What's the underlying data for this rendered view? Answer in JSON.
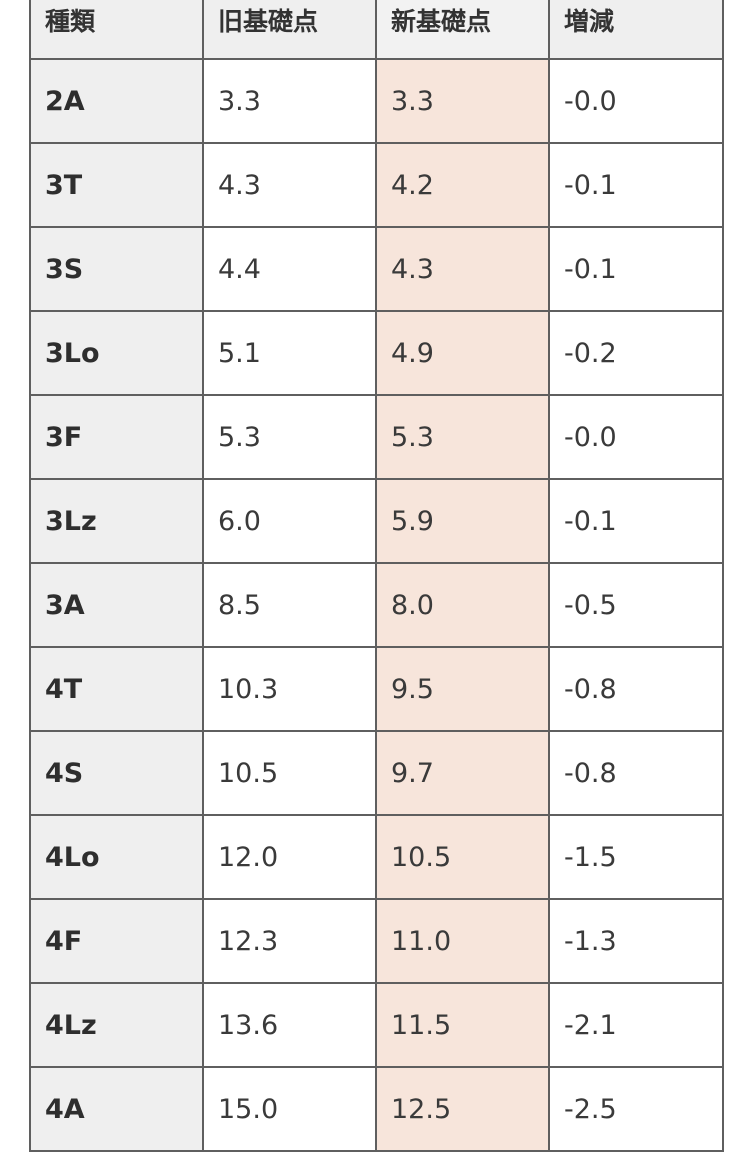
{
  "table": {
    "headers": [
      "種類",
      "旧基礎点",
      "新基礎点",
      "増減"
    ],
    "highlight_color": "#f7e5db",
    "rows": [
      {
        "type": "2A",
        "old": "3.3",
        "new": "3.3",
        "diff": "-0.0"
      },
      {
        "type": "3T",
        "old": "4.3",
        "new": "4.2",
        "diff": "-0.1"
      },
      {
        "type": "3S",
        "old": "4.4",
        "new": "4.3",
        "diff": "-0.1"
      },
      {
        "type": "3Lo",
        "old": "5.1",
        "new": "4.9",
        "diff": "-0.2"
      },
      {
        "type": "3F",
        "old": "5.3",
        "new": "5.3",
        "diff": "-0.0"
      },
      {
        "type": "3Lz",
        "old": "6.0",
        "new": "5.9",
        "diff": "-0.1"
      },
      {
        "type": "3A",
        "old": "8.5",
        "new": "8.0",
        "diff": "-0.5"
      },
      {
        "type": "4T",
        "old": "10.3",
        "new": "9.5",
        "diff": "-0.8"
      },
      {
        "type": "4S",
        "old": "10.5",
        "new": "9.7",
        "diff": "-0.8"
      },
      {
        "type": "4Lo",
        "old": "12.0",
        "new": "10.5",
        "diff": "-1.5"
      },
      {
        "type": "4F",
        "old": "12.3",
        "new": "11.0",
        "diff": "-1.3"
      },
      {
        "type": "4Lz",
        "old": "13.6",
        "new": "11.5",
        "diff": "-2.1"
      },
      {
        "type": "4A",
        "old": "15.0",
        "new": "12.5",
        "diff": "-2.5"
      }
    ]
  }
}
